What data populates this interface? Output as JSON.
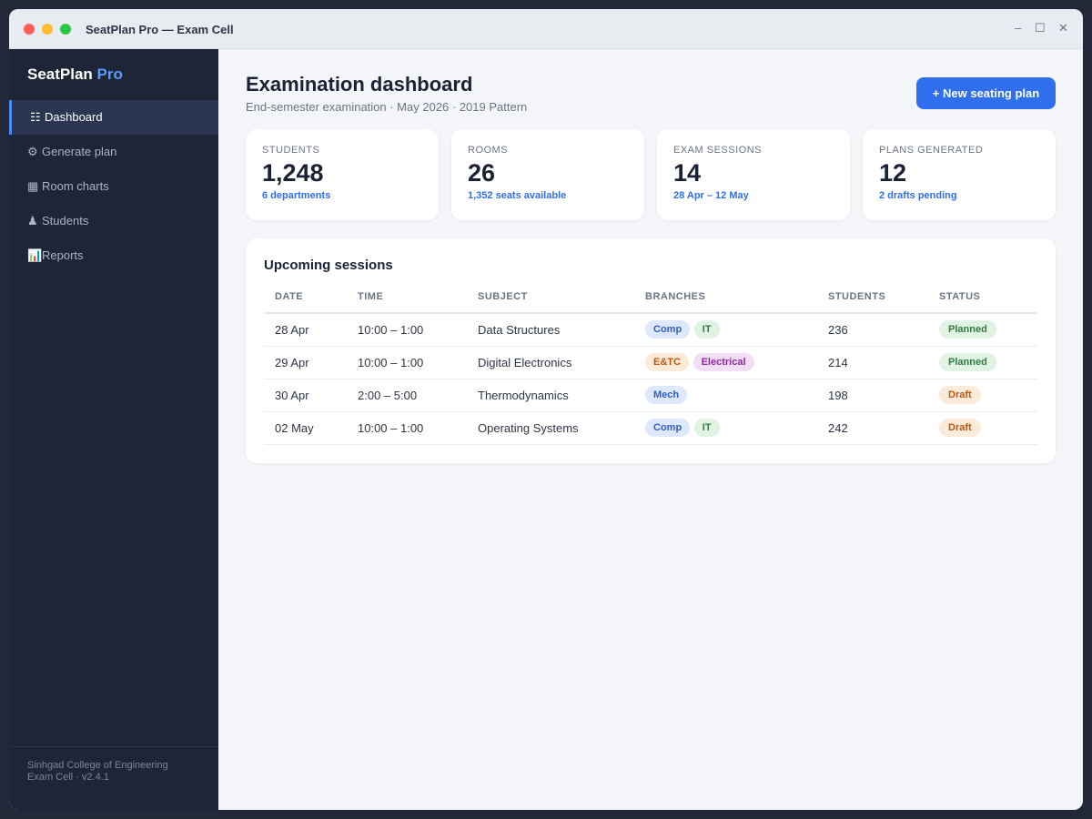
{
  "window": {
    "title": "SeatPlan Pro — Exam Cell",
    "controls": {
      "minimize": "–",
      "maximize": "☐",
      "close": "✕"
    }
  },
  "sidebar": {
    "brand": {
      "name": "SeatPlan",
      "accent": "Pro"
    },
    "items": [
      {
        "icon": "☷",
        "icon_name": "dashboard-icon",
        "label": "Dashboard",
        "active": true
      },
      {
        "icon": "⚙",
        "icon_name": "gear-icon",
        "label": "Generate plan"
      },
      {
        "icon": "▦",
        "icon_name": "grid-icon",
        "label": "Room charts"
      },
      {
        "icon": "♟",
        "icon_name": "person-icon",
        "label": "Students"
      },
      {
        "icon": "📊",
        "icon_name": "bar-chart-icon",
        "label": "Reports"
      }
    ],
    "footer": {
      "line1": "Sinhgad College of Engineering",
      "line2": "Exam Cell · v2.4.1"
    }
  },
  "header": {
    "title": "Examination dashboard",
    "subtitle": "End-semester examination · May 2026 · 2019 Pattern",
    "new_plan_label": "+ New seating plan"
  },
  "stats": [
    {
      "label": "STUDENTS",
      "value": "1,248",
      "note": "6 departments"
    },
    {
      "label": "ROOMS",
      "value": "26",
      "note": "1,352 seats available"
    },
    {
      "label": "EXAM SESSIONS",
      "value": "14",
      "note": "28 Apr – 12 May"
    },
    {
      "label": "PLANS GENERATED",
      "value": "12",
      "note": "2 drafts pending"
    }
  ],
  "sessions": {
    "title": "Upcoming sessions",
    "columns": [
      "DATE",
      "TIME",
      "SUBJECT",
      "BRANCHES",
      "STUDENTS",
      "STATUS"
    ],
    "rows": [
      {
        "date": "28 Apr",
        "time": "10:00 – 1:00",
        "subject": "Data Structures",
        "branches": [
          {
            "label": "Comp",
            "color": "blue"
          },
          {
            "label": "IT",
            "color": "green"
          }
        ],
        "students": "236",
        "status": "Planned"
      },
      {
        "date": "29 Apr",
        "time": "10:00 – 1:00",
        "subject": "Digital Electronics",
        "branches": [
          {
            "label": "E&TC",
            "color": "orange"
          },
          {
            "label": "Electrical",
            "color": "purple"
          }
        ],
        "students": "214",
        "status": "Planned"
      },
      {
        "date": "30 Apr",
        "time": "2:00 – 5:00",
        "subject": "Thermodynamics",
        "branches": [
          {
            "label": "Mech",
            "color": "blue"
          }
        ],
        "students": "198",
        "status": "Draft"
      },
      {
        "date": "02 May",
        "time": "10:00 – 1:00",
        "subject": "Operating Systems",
        "branches": [
          {
            "label": "Comp",
            "color": "blue"
          },
          {
            "label": "IT",
            "color": "green"
          }
        ],
        "students": "242",
        "status": "Draft"
      }
    ]
  },
  "colors": {
    "accent": "#2f6fed",
    "sidebar_bg": "#1e2536",
    "planned": "#2e7d3c",
    "draft": "#c4560f"
  }
}
